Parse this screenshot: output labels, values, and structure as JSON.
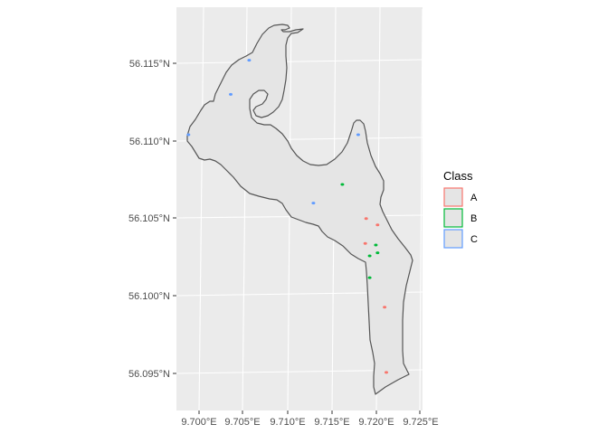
{
  "map": {
    "x_axis_labels": [
      "9.700°E",
      "9.705°E",
      "9.710°E",
      "9.715°E",
      "9.720°E",
      "9.725°E"
    ],
    "y_axis_labels": [
      "56.115°N",
      "56.110°N",
      "56.105°N",
      "56.100°N",
      "56.095°N"
    ],
    "lon_range": [
      9.6975,
      9.7255
    ],
    "lat_range": [
      56.0925,
      56.1185
    ],
    "polygon_fill": "#e5e5e5",
    "polygon_stroke": "#555555",
    "panel_background": "#ebebeb",
    "grid_color": "#ffffff"
  },
  "legend": {
    "title": "Class",
    "items": [
      {
        "label": "A",
        "color": "#f8766d"
      },
      {
        "label": "B",
        "color": "#00ba38"
      },
      {
        "label": "C",
        "color": "#619cff"
      }
    ]
  },
  "points": [
    {
      "class": "C",
      "lon": 9.7057,
      "lat": 56.1152
    },
    {
      "class": "C",
      "lon": 9.7036,
      "lat": 56.113
    },
    {
      "class": "C",
      "lon": 9.6988,
      "lat": 56.1104
    },
    {
      "class": "C",
      "lon": 9.7181,
      "lat": 56.1104
    },
    {
      "class": "C",
      "lon": 9.713,
      "lat": 56.106
    },
    {
      "class": "B",
      "lon": 9.7163,
      "lat": 56.1072
    },
    {
      "class": "A",
      "lon": 9.719,
      "lat": 56.105
    },
    {
      "class": "A",
      "lon": 9.7203,
      "lat": 56.1046
    },
    {
      "class": "A",
      "lon": 9.7189,
      "lat": 56.1034
    },
    {
      "class": "B",
      "lon": 9.7201,
      "lat": 56.1033
    },
    {
      "class": "B",
      "lon": 9.7203,
      "lat": 56.1028
    },
    {
      "class": "B",
      "lon": 9.7194,
      "lat": 56.1026
    },
    {
      "class": "B",
      "lon": 9.7194,
      "lat": 56.1012
    },
    {
      "class": "A",
      "lon": 9.7211,
      "lat": 56.0993
    },
    {
      "class": "A",
      "lon": 9.7213,
      "lat": 56.0951
    }
  ]
}
